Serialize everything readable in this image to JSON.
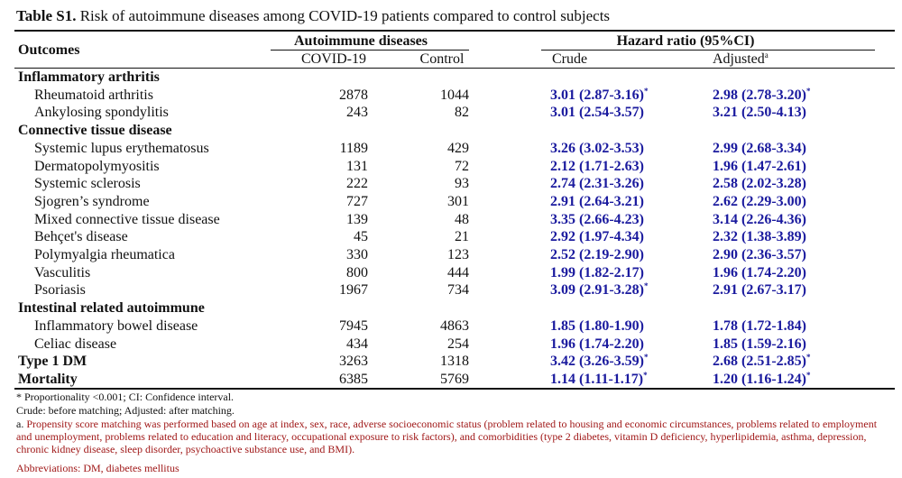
{
  "caption": {
    "label": "Table S1.",
    "text": "Risk of autoimmune diseases among COVID-19 patients compared to control subjects"
  },
  "header": {
    "outcomes": "Outcomes",
    "group_autoimmune": "Autoimmune diseases",
    "group_hr": "Hazard ratio (95%CI)",
    "col_covid": "COVID-19",
    "col_control": "Control",
    "col_crude": "Crude",
    "col_adjusted": "Adjusted",
    "col_adjusted_sup": "a"
  },
  "rows": [
    {
      "type": "group",
      "label": "Inflammatory arthritis"
    },
    {
      "type": "item",
      "label": "Rheumatoid arthritis",
      "covid": "2878",
      "control": "1044",
      "crude": "3.01 (2.87-3.16)",
      "crude_sup": "*",
      "adjusted": "2.98 (2.78-3.20)",
      "adjusted_sup": "*"
    },
    {
      "type": "item",
      "label": "Ankylosing spondylitis",
      "covid": "243",
      "control": "82",
      "crude": "3.01 (2.54-3.57)",
      "crude_sup": "",
      "adjusted": "3.21 (2.50-4.13)",
      "adjusted_sup": ""
    },
    {
      "type": "group",
      "label": "Connective tissue disease"
    },
    {
      "type": "item",
      "label": "Systemic lupus erythematosus",
      "covid": "1189",
      "control": "429",
      "crude": "3.26 (3.02-3.53)",
      "crude_sup": "",
      "adjusted": "2.99 (2.68-3.34)",
      "adjusted_sup": ""
    },
    {
      "type": "item",
      "label": "Dermatopolymyositis",
      "covid": "131",
      "control": "72",
      "crude": "2.12 (1.71-2.63)",
      "crude_sup": "",
      "adjusted": "1.96 (1.47-2.61)",
      "adjusted_sup": ""
    },
    {
      "type": "item",
      "label": "Systemic sclerosis",
      "covid": "222",
      "control": "93",
      "crude": "2.74 (2.31-3.26)",
      "crude_sup": "",
      "adjusted": "2.58 (2.02-3.28)",
      "adjusted_sup": ""
    },
    {
      "type": "item",
      "label": "Sjogren’s syndrome",
      "covid": "727",
      "control": "301",
      "crude": "2.91 (2.64-3.21)",
      "crude_sup": "",
      "adjusted": "2.62 (2.29-3.00)",
      "adjusted_sup": ""
    },
    {
      "type": "item",
      "label": "Mixed connective tissue disease",
      "covid": "139",
      "control": "48",
      "crude": "3.35 (2.66-4.23)",
      "crude_sup": "",
      "adjusted": "3.14 (2.26-4.36)",
      "adjusted_sup": ""
    },
    {
      "type": "item",
      "label": "Behçet's disease",
      "covid": "45",
      "control": "21",
      "crude": "2.92 (1.97-4.34)",
      "crude_sup": "",
      "adjusted": "2.32 (1.38-3.89)",
      "adjusted_sup": ""
    },
    {
      "type": "item",
      "label": "Polymyalgia rheumatica",
      "covid": "330",
      "control": "123",
      "crude": "2.52 (2.19-2.90)",
      "crude_sup": "",
      "adjusted": "2.90 (2.36-3.57)",
      "adjusted_sup": ""
    },
    {
      "type": "item",
      "label": "Vasculitis",
      "covid": "800",
      "control": "444",
      "crude": "1.99 (1.82-2.17)",
      "crude_sup": "",
      "adjusted": "1.96 (1.74-2.20)",
      "adjusted_sup": ""
    },
    {
      "type": "item",
      "label": "Psoriasis",
      "covid": "1967",
      "control": "734",
      "crude": "3.09 (2.91-3.28)",
      "crude_sup": "*",
      "adjusted": "2.91 (2.67-3.17)",
      "adjusted_sup": ""
    },
    {
      "type": "group",
      "label": "Intestinal related autoimmune"
    },
    {
      "type": "item",
      "label": "Inflammatory bowel disease",
      "covid": "7945",
      "control": "4863",
      "crude": "1.85 (1.80-1.90)",
      "crude_sup": "",
      "adjusted": "1.78 (1.72-1.84)",
      "adjusted_sup": ""
    },
    {
      "type": "item",
      "label": "Celiac disease",
      "covid": "434",
      "control": "254",
      "crude": "1.96 (1.74-2.20)",
      "crude_sup": "",
      "adjusted": "1.85 (1.59-2.16)",
      "adjusted_sup": ""
    },
    {
      "type": "main",
      "label": "Type 1 DM",
      "covid": "3263",
      "control": "1318",
      "crude": "3.42 (3.26-3.59)",
      "crude_sup": "*",
      "adjusted": "2.68 (2.51-2.85)",
      "adjusted_sup": "*"
    },
    {
      "type": "main",
      "label": "Mortality",
      "covid": "6385",
      "control": "5769",
      "crude": "1.14 (1.11-1.17)",
      "crude_sup": "*",
      "adjusted": "1.20 (1.16-1.24)",
      "adjusted_sup": "*"
    }
  ],
  "notes": {
    "proportionality": "* Proportionality <0.001; CI: Confidence interval.",
    "crude_adjusted": "Crude: before matching; Adjusted: after matching.",
    "footnote_a_marker": "a.",
    "footnote_a_text": "Propensity score matching was performed based on age at index, sex, race, adverse socioeconomic status (problem related to housing and economic circumstances, problems related to employment and unemployment, problems related to education and literacy, occupational exposure to risk factors), and comorbidities (type 2 diabetes, vitamin D deficiency, hyperlipidemia, asthma, depression, chronic kidney disease, sleep disorder, psychoactive substance use, and BMI).",
    "abbreviations": "Abbreviations: DM, diabetes mellitus"
  },
  "colors": {
    "hr_values": "#1a1a9e",
    "footnote_text": "#a01818",
    "text": "#111111"
  }
}
